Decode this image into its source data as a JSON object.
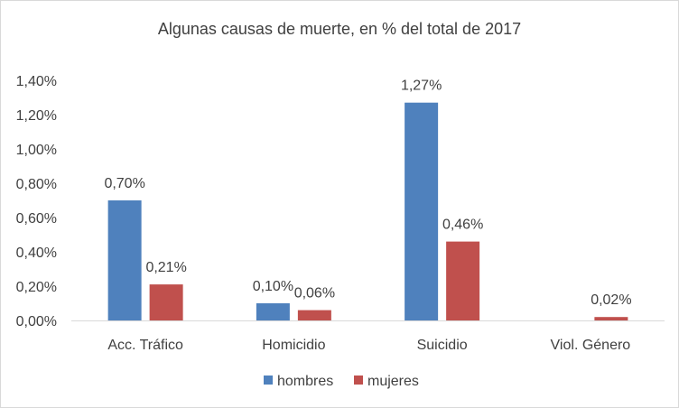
{
  "chart_data": {
    "type": "bar",
    "title": "Algunas causas de muerte, en % del total de 2017",
    "categories": [
      "Acc. Tráfico",
      "Homicidio",
      "Suicidio",
      "Viol. Género"
    ],
    "series": [
      {
        "name": "hombres",
        "color": "#4F81BD",
        "values": [
          0.7,
          0.1,
          1.27,
          null
        ],
        "labels": [
          "0,70%",
          "0,10%",
          "1,27%",
          ""
        ]
      },
      {
        "name": "mujeres",
        "color": "#C0504D",
        "values": [
          0.21,
          0.06,
          0.46,
          0.02
        ],
        "labels": [
          "0,21%",
          "0,06%",
          "0,46%",
          "0,02%"
        ]
      }
    ],
    "ylim": [
      0,
      1.4
    ],
    "yticks": [
      0,
      0.2,
      0.4,
      0.6,
      0.8,
      1.0,
      1.2,
      1.4
    ],
    "ytick_labels": [
      "0,00%",
      "0,20%",
      "0,40%",
      "0,60%",
      "0,80%",
      "1,00%",
      "1,20%",
      "1,40%"
    ],
    "grid": false,
    "legend_position": "bottom",
    "axis_color": "#d9d9d9"
  }
}
